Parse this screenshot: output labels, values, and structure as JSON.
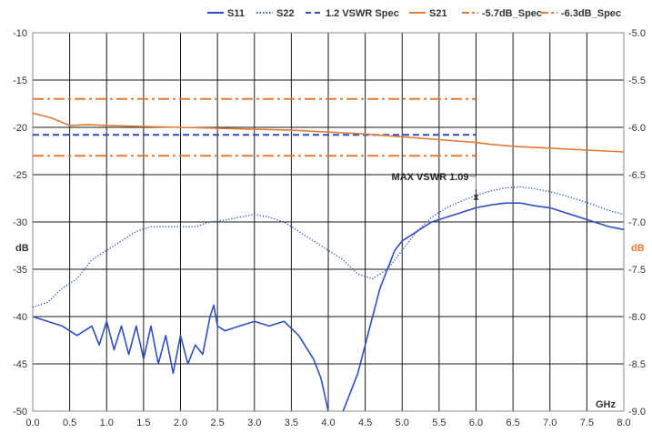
{
  "chart_data": {
    "type": "line",
    "title": "",
    "xlabel": "GHz",
    "ylabel_left": "dB",
    "ylabel_right": "dB",
    "xlim": [
      0.0,
      8.0
    ],
    "ylim_left": [
      -50,
      -10
    ],
    "ylim_right": [
      -9.0,
      -5.0
    ],
    "x_ticks": [
      "0.0",
      "0.5",
      "1.0",
      "1.5",
      "2.0",
      "2.5",
      "3.0",
      "3.5",
      "4.0",
      "4.5",
      "5.0",
      "5.5",
      "6.0",
      "6.5",
      "7.0",
      "7.5",
      "8.0"
    ],
    "y_left_ticks": [
      "-10",
      "-15",
      "-20",
      "-25",
      "-30",
      "-35",
      "-40",
      "-45",
      "-50"
    ],
    "y_right_ticks": [
      "-5.0",
      "-5.5",
      "-6.0",
      "-6.5",
      "-7.0",
      "-7.5",
      "-8.0",
      "-8.5",
      "-9.0"
    ],
    "grid": true,
    "legend_position": "top",
    "colors": {
      "blue": "#2e4fbd",
      "orange": "#e07b39"
    },
    "series": [
      {
        "name": "S11",
        "axis": "left",
        "style": "solid",
        "color": "#2e4fbd",
        "x": [
          0.0,
          0.2,
          0.4,
          0.6,
          0.8,
          0.9,
          1.0,
          1.1,
          1.2,
          1.3,
          1.4,
          1.5,
          1.6,
          1.7,
          1.8,
          1.9,
          2.0,
          2.1,
          2.2,
          2.3,
          2.4,
          2.45,
          2.5,
          2.6,
          2.8,
          3.0,
          3.2,
          3.4,
          3.6,
          3.8,
          3.9,
          4.0,
          4.1,
          4.2,
          4.3,
          4.4,
          4.5,
          4.6,
          4.7,
          4.8,
          4.9,
          5.0,
          5.2,
          5.4,
          5.6,
          5.8,
          6.0,
          6.2,
          6.4,
          6.6,
          6.8,
          7.0,
          7.2,
          7.4,
          7.6,
          7.8,
          8.0
        ],
        "values": [
          -40,
          -40.5,
          -41,
          -42,
          -41,
          -43,
          -40.5,
          -43.5,
          -41,
          -44,
          -41,
          -44.5,
          -41,
          -45,
          -42,
          -46,
          -42,
          -45,
          -43,
          -44,
          -40,
          -38.8,
          -41,
          -41.5,
          -41,
          -40.5,
          -41,
          -40.5,
          -42,
          -44.5,
          -46.5,
          -50,
          -52,
          -50,
          -48,
          -46,
          -43,
          -40,
          -37,
          -35,
          -33,
          -32,
          -31,
          -30,
          -29.5,
          -29,
          -28.5,
          -28.2,
          -28,
          -28,
          -28.3,
          -28.5,
          -29,
          -29.5,
          -30,
          -30.5,
          -30.8
        ]
      },
      {
        "name": "S22",
        "axis": "left",
        "style": "dotted",
        "color": "#2e4fbd",
        "x": [
          0.0,
          0.2,
          0.4,
          0.6,
          0.8,
          1.0,
          1.2,
          1.4,
          1.6,
          1.8,
          2.0,
          2.2,
          2.4,
          2.6,
          2.8,
          3.0,
          3.2,
          3.4,
          3.6,
          3.8,
          4.0,
          4.2,
          4.4,
          4.6,
          4.8,
          5.0,
          5.2,
          5.4,
          5.6,
          5.8,
          6.0,
          6.2,
          6.4,
          6.6,
          6.8,
          7.0,
          7.2,
          7.4,
          7.6,
          7.8,
          8.0
        ],
        "values": [
          -39,
          -38.5,
          -37,
          -36,
          -34,
          -33,
          -32,
          -31,
          -30.5,
          -30.5,
          -30.5,
          -30.5,
          -30,
          -29.8,
          -29.5,
          -29.2,
          -29.5,
          -30,
          -31,
          -32,
          -33,
          -34,
          -35.5,
          -36,
          -35,
          -33,
          -31,
          -29.5,
          -28.5,
          -27.8,
          -27.2,
          -26.7,
          -26.4,
          -26.3,
          -26.5,
          -26.8,
          -27.2,
          -27.7,
          -28.2,
          -28.8,
          -29.2
        ]
      },
      {
        "name": "1.2 VSWR Spec",
        "axis": "left",
        "style": "dashed",
        "color": "#2e4fbd",
        "x": [
          0.0,
          6.0
        ],
        "values": [
          -20.8,
          -20.8
        ]
      },
      {
        "name": "S21",
        "axis": "right",
        "style": "solid",
        "color": "#e07b39",
        "x": [
          0.0,
          0.25,
          0.5,
          0.75,
          1.0,
          1.5,
          2.0,
          2.5,
          3.0,
          3.5,
          4.0,
          4.5,
          5.0,
          5.5,
          6.0,
          6.2,
          6.5,
          7.0,
          7.5,
          8.0
        ],
        "values": [
          -5.85,
          -5.9,
          -5.98,
          -5.97,
          -5.98,
          -5.99,
          -6.0,
          -6.01,
          -6.02,
          -6.03,
          -6.05,
          -6.07,
          -6.1,
          -6.13,
          -6.16,
          -6.18,
          -6.2,
          -6.22,
          -6.24,
          -6.26
        ]
      },
      {
        "name": "-5.7dB_Spec",
        "axis": "right",
        "style": "dashdot",
        "color": "#e07b39",
        "x": [
          0.0,
          6.0
        ],
        "values": [
          -5.7,
          -5.7
        ]
      },
      {
        "name": "-6.3dB_Spec",
        "axis": "right",
        "style": "dashdot",
        "color": "#e07b39",
        "x": [
          0.0,
          6.0
        ],
        "values": [
          -6.3,
          -6.3
        ]
      }
    ],
    "annotation": {
      "text": "MAX VSWR 1.09",
      "marker": "x",
      "x": 6.0,
      "y": -27.3,
      "axis": "left"
    }
  }
}
